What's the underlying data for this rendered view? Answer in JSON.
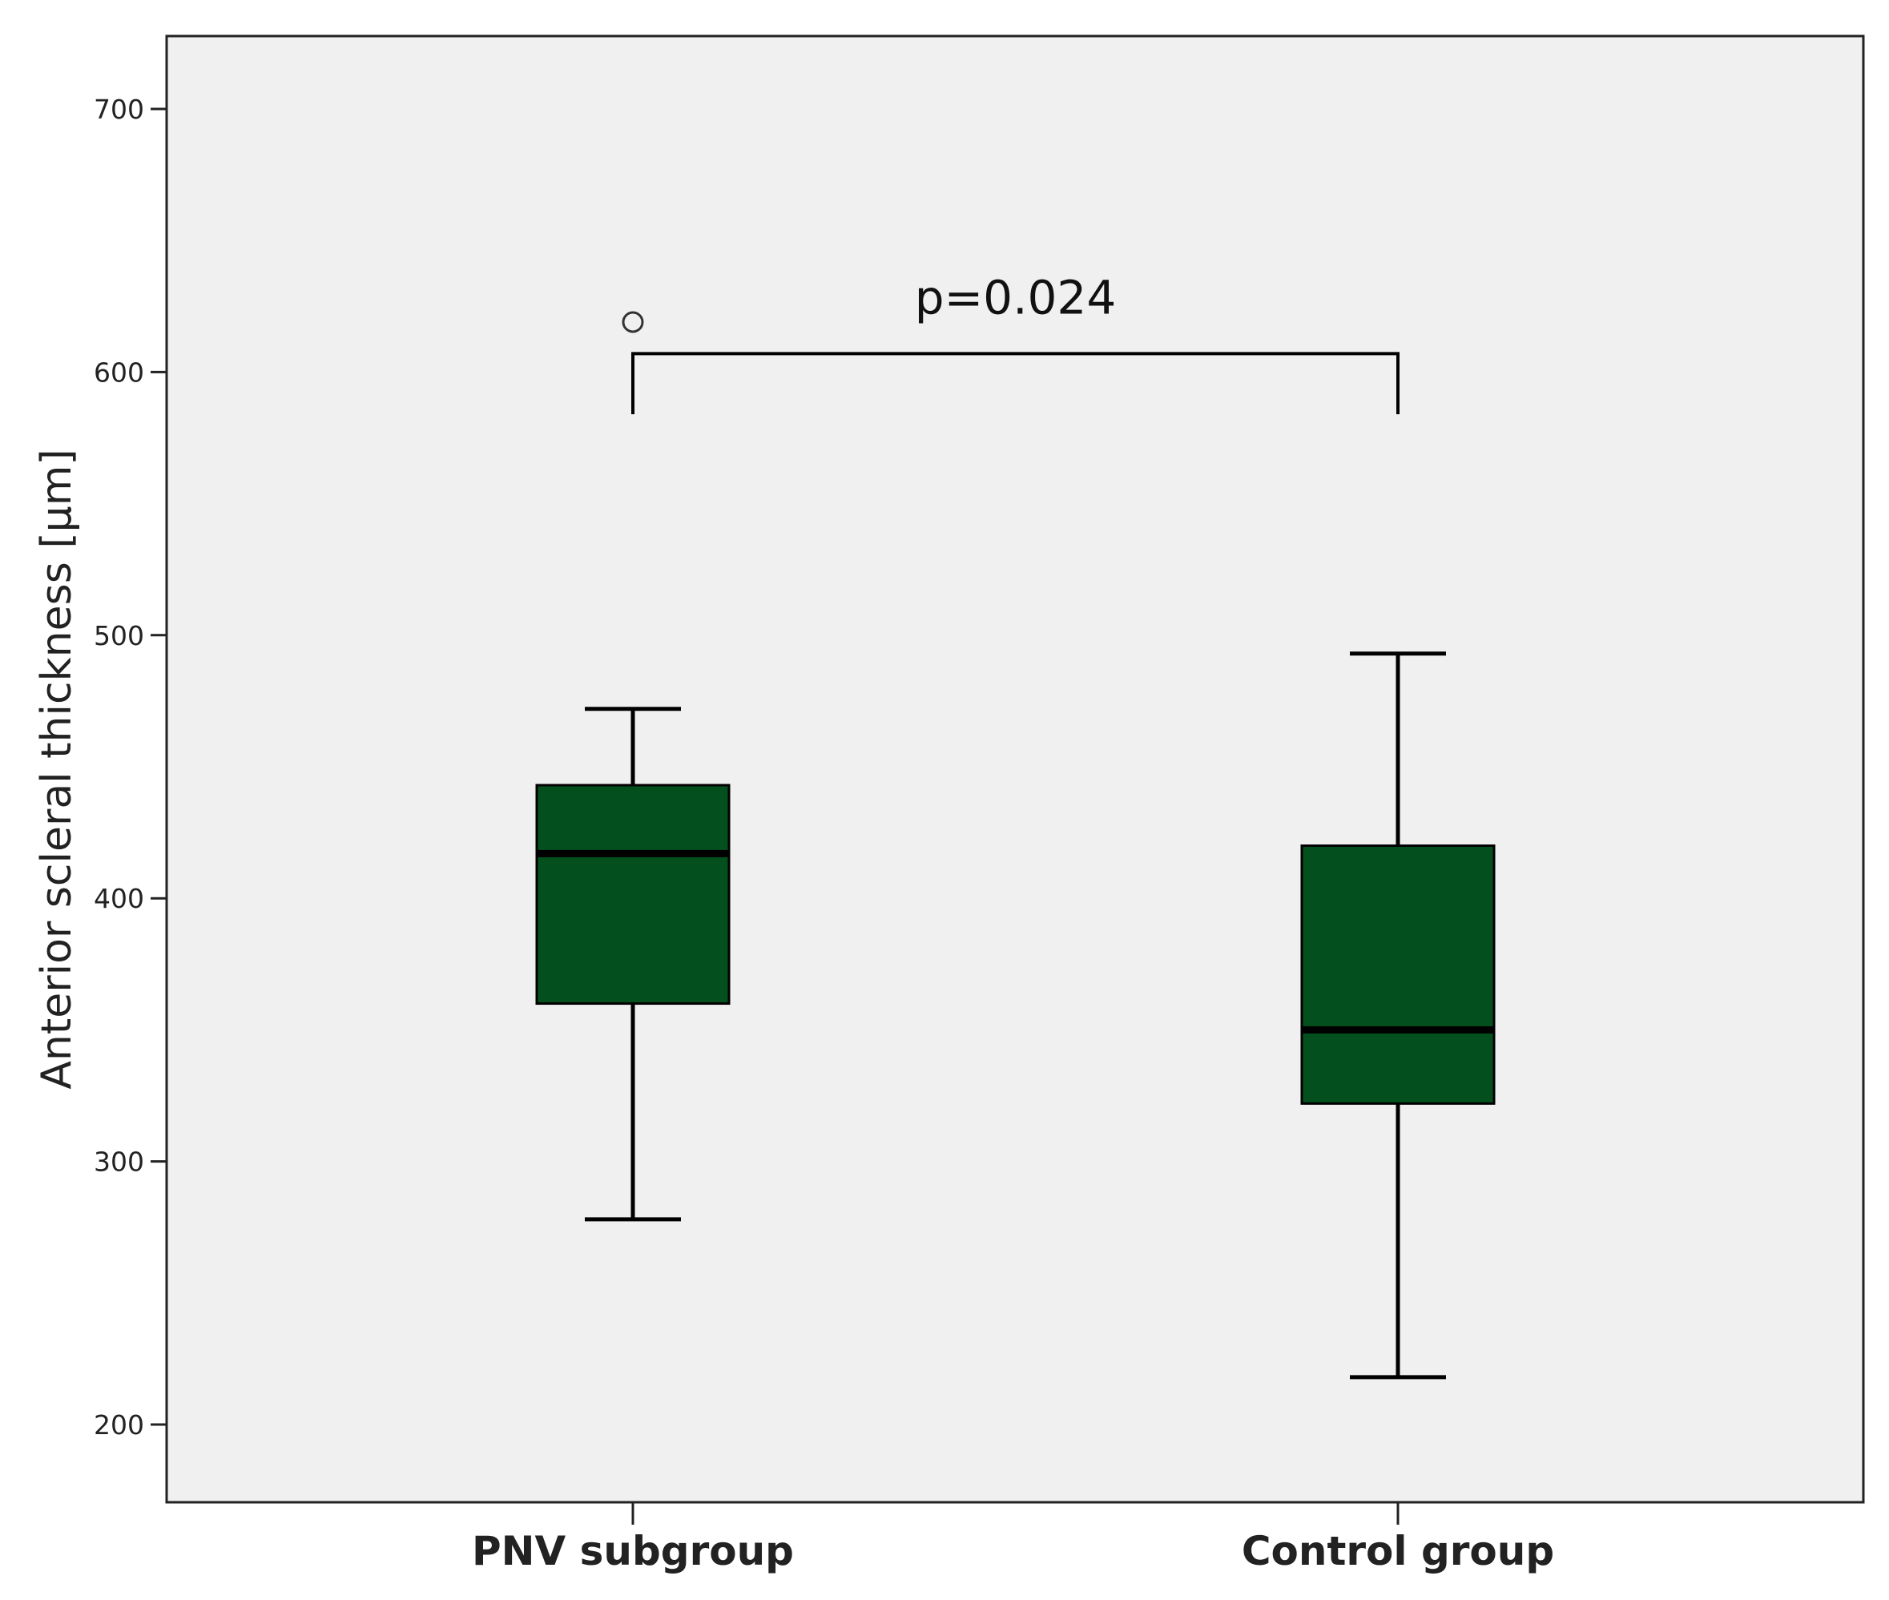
{
  "chart_data": {
    "type": "boxplot",
    "title": "",
    "xlabel": "",
    "ylabel": "Anterior scleral thickness [µm]",
    "ylim": [
      172,
      728
    ],
    "yticks": [
      200,
      300,
      400,
      500,
      600,
      700
    ],
    "grid": false,
    "plot_background": "#eff0ef",
    "box_color": "#03501e",
    "categories": [
      "PNV subgroup",
      "Control group"
    ],
    "boxes": [
      {
        "category": "PNV subgroup",
        "whisker_low": 278,
        "q1": 360,
        "median": 417,
        "q3": 443,
        "whisker_high": 472,
        "outliers": [
          619
        ]
      },
      {
        "category": "Control group",
        "whisker_low": 218,
        "q1": 322,
        "median": 350,
        "q3": 420,
        "whisker_high": 493,
        "outliers": []
      }
    ],
    "annotation": {
      "text": "p=0.024",
      "bracket_y": 607,
      "bracket_drop_to": 584
    }
  }
}
